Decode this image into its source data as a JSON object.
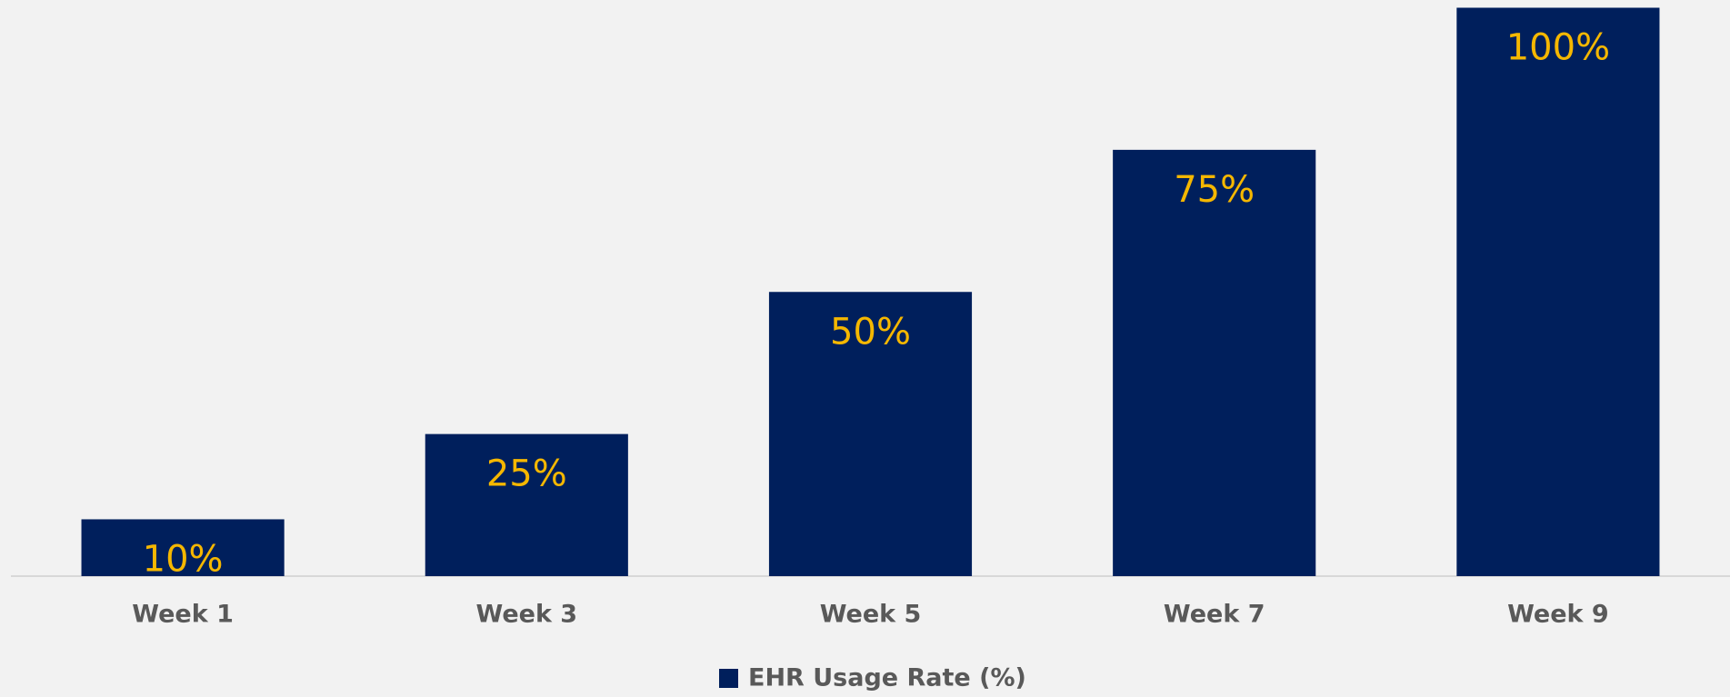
{
  "chart_data": {
    "type": "bar",
    "categories": [
      "Week 1",
      "Week 3",
      "Week 5",
      "Week 7",
      "Week 9"
    ],
    "series": [
      {
        "name": "EHR Usage Rate (%)",
        "color": "#001f5c",
        "values": [
          10,
          25,
          50,
          75,
          100
        ]
      }
    ],
    "value_labels": [
      "10%",
      "25%",
      "50%",
      "75%",
      "100%"
    ],
    "label_color": "#f5b700",
    "ylim": [
      0,
      100
    ],
    "legend": "bottom"
  }
}
